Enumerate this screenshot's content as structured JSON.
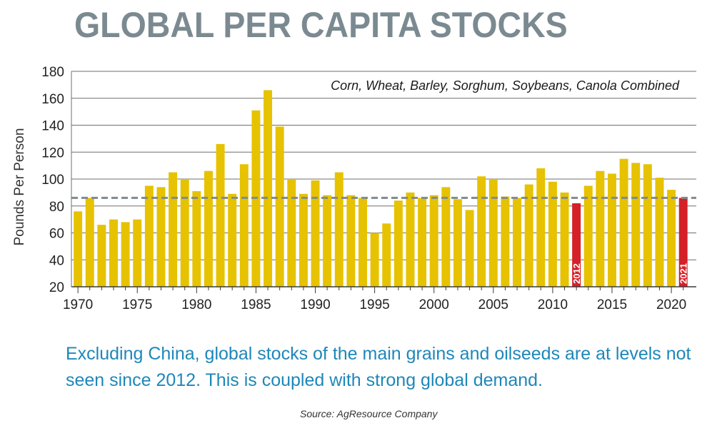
{
  "title": "GLOBAL PER CAPITA STOCKS",
  "caption": "Excluding China, global stocks of the main grains and oilseeds are at levels not seen since 2012. This is coupled with strong global demand.",
  "source": "Source: AgResource Company",
  "colors": {
    "bar": "#e6c200",
    "highlight": "#d42027",
    "title": "#7b8a91",
    "caption": "#1e87b9",
    "reference_line": "#7f8a92",
    "grid": "#6f6f6f"
  },
  "chart_data": {
    "type": "bar",
    "subtitle": "Corn, Wheat, Barley, Sorghum, Soybeans, Canola Combined",
    "ylabel": "Pounds Per Person",
    "xlabel": "",
    "ylim": [
      20,
      180
    ],
    "yticks": [
      20,
      40,
      60,
      80,
      100,
      120,
      140,
      160,
      180
    ],
    "xticks": [
      1970,
      1975,
      1980,
      1985,
      1990,
      1995,
      2000,
      2005,
      2010,
      2015,
      2020
    ],
    "reference_line": 86,
    "grid": true,
    "categories": [
      1970,
      1971,
      1972,
      1973,
      1974,
      1975,
      1976,
      1977,
      1978,
      1979,
      1980,
      1981,
      1982,
      1983,
      1984,
      1985,
      1986,
      1987,
      1988,
      1989,
      1990,
      1991,
      1992,
      1993,
      1994,
      1995,
      1996,
      1997,
      1998,
      1999,
      2000,
      2001,
      2002,
      2003,
      2004,
      2005,
      2006,
      2007,
      2008,
      2009,
      2010,
      2011,
      2012,
      2013,
      2014,
      2015,
      2016,
      2017,
      2018,
      2019,
      2020,
      2021
    ],
    "values": [
      76,
      86,
      66,
      70,
      68,
      70,
      95,
      94,
      105,
      100,
      91,
      106,
      126,
      89,
      111,
      151,
      166,
      139,
      100,
      89,
      99,
      88,
      105,
      88,
      86,
      60,
      67,
      84,
      90,
      86,
      88,
      94,
      85,
      77,
      102,
      100,
      87,
      86,
      96,
      108,
      98,
      90,
      82,
      95,
      106,
      104,
      115,
      112,
      111,
      101,
      92,
      86
    ],
    "highlighted": [
      {
        "year": 2012,
        "label": "2012"
      },
      {
        "year": 2021,
        "label": "2021"
      }
    ]
  }
}
